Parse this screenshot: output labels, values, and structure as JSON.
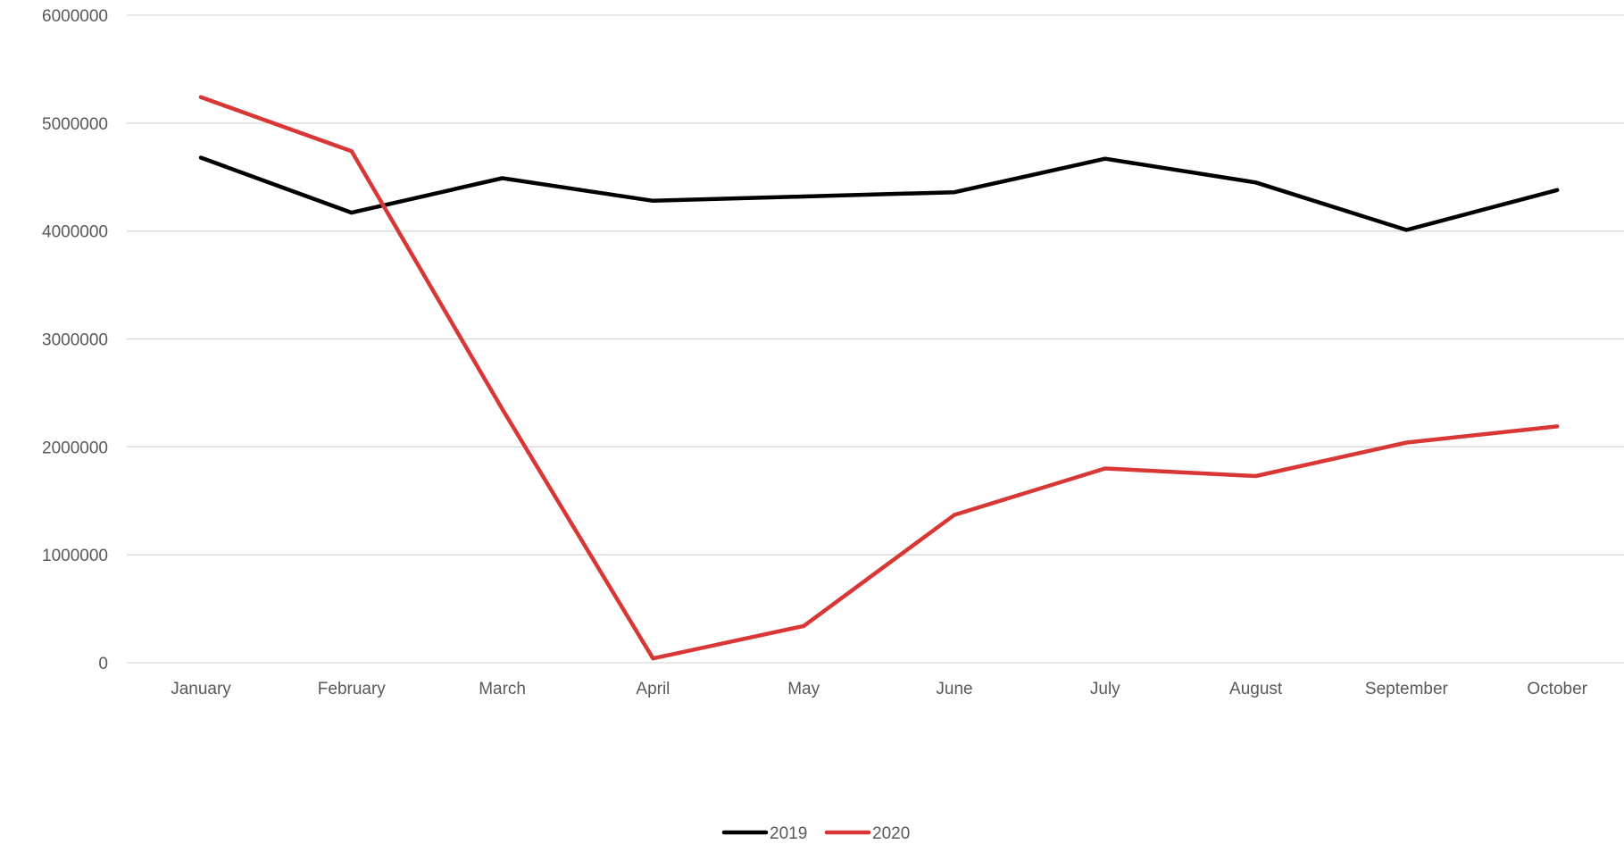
{
  "chart_data": {
    "type": "line",
    "title": "",
    "xlabel": "",
    "ylabel": "",
    "categories": [
      "January",
      "February",
      "March",
      "April",
      "May",
      "June",
      "July",
      "August",
      "September",
      "October"
    ],
    "series": [
      {
        "name": "2019",
        "color": "#000000",
        "values": [
          4680000,
          4170000,
          4490000,
          4280000,
          4320000,
          4360000,
          4670000,
          4450000,
          4010000,
          4380000
        ]
      },
      {
        "name": "2020",
        "color": "#d93636",
        "values": [
          5240000,
          4740000,
          2350000,
          40000,
          340000,
          1370000,
          1800000,
          1730000,
          2040000,
          2190000
        ]
      }
    ],
    "ylim": [
      0,
      6000000
    ],
    "yticks": [
      0,
      1000000,
      2000000,
      3000000,
      4000000,
      5000000,
      6000000
    ],
    "ytick_labels": [
      "0",
      "1000000",
      "2000000",
      "3000000",
      "4000000",
      "5000000",
      "6000000"
    ],
    "grid": true,
    "legend_position": "bottom"
  }
}
